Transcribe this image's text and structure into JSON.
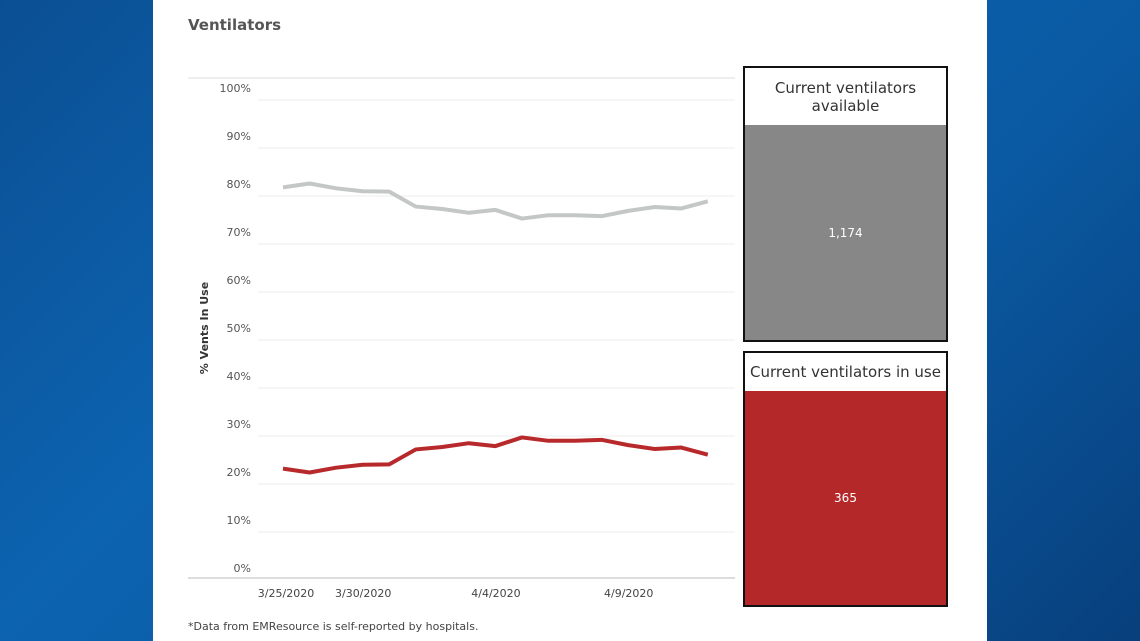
{
  "chart_data": {
    "type": "line",
    "title": "Ventilators",
    "y_label": "% Vents In Use",
    "categories": [
      "3/25/2020",
      null,
      null,
      null,
      "3/30/2020",
      null,
      null,
      null,
      null,
      "4/4/2020",
      null,
      null,
      null,
      null,
      "4/9/2020",
      null,
      null
    ],
    "series": [
      {
        "color": "#c3c7c5",
        "values": [
          79.3,
          80.1,
          79.1,
          78.5,
          78.4,
          75.3,
          74.8,
          74.0,
          74.6,
          72.8,
          73.5,
          73.5,
          73.3,
          74.4,
          75.2,
          74.9,
          76.4
        ]
      },
      {
        "color": "#b8292b",
        "values": [
          20.7,
          19.9,
          20.9,
          21.5,
          21.6,
          24.7,
          25.2,
          26.0,
          25.4,
          27.2,
          26.5,
          26.5,
          26.7,
          25.6,
          24.8,
          25.1,
          23.6
        ]
      }
    ],
    "ylim": [
      0,
      100
    ],
    "yticks": [
      {
        "value": 0,
        "label": "0%"
      },
      {
        "value": 10,
        "label": "10%"
      },
      {
        "value": 20,
        "label": "20%"
      },
      {
        "value": 30,
        "label": "30%"
      },
      {
        "value": 40,
        "label": "40%"
      },
      {
        "value": 50,
        "label": "50%"
      },
      {
        "value": 60,
        "label": "60%"
      },
      {
        "value": 70,
        "label": "70%"
      },
      {
        "value": 80,
        "label": "80%"
      },
      {
        "value": 90,
        "label": "90%"
      },
      {
        "value": 100,
        "label": "100%"
      }
    ],
    "grid": true
  },
  "cards": [
    {
      "label": "Current ventilators available",
      "value": "1,174",
      "color": "#878787"
    },
    {
      "label": "Current ventilators in use",
      "value": "365",
      "color": "#b5282a"
    }
  ],
  "footnote": "*Data from EMResource is self-reported by hospitals."
}
